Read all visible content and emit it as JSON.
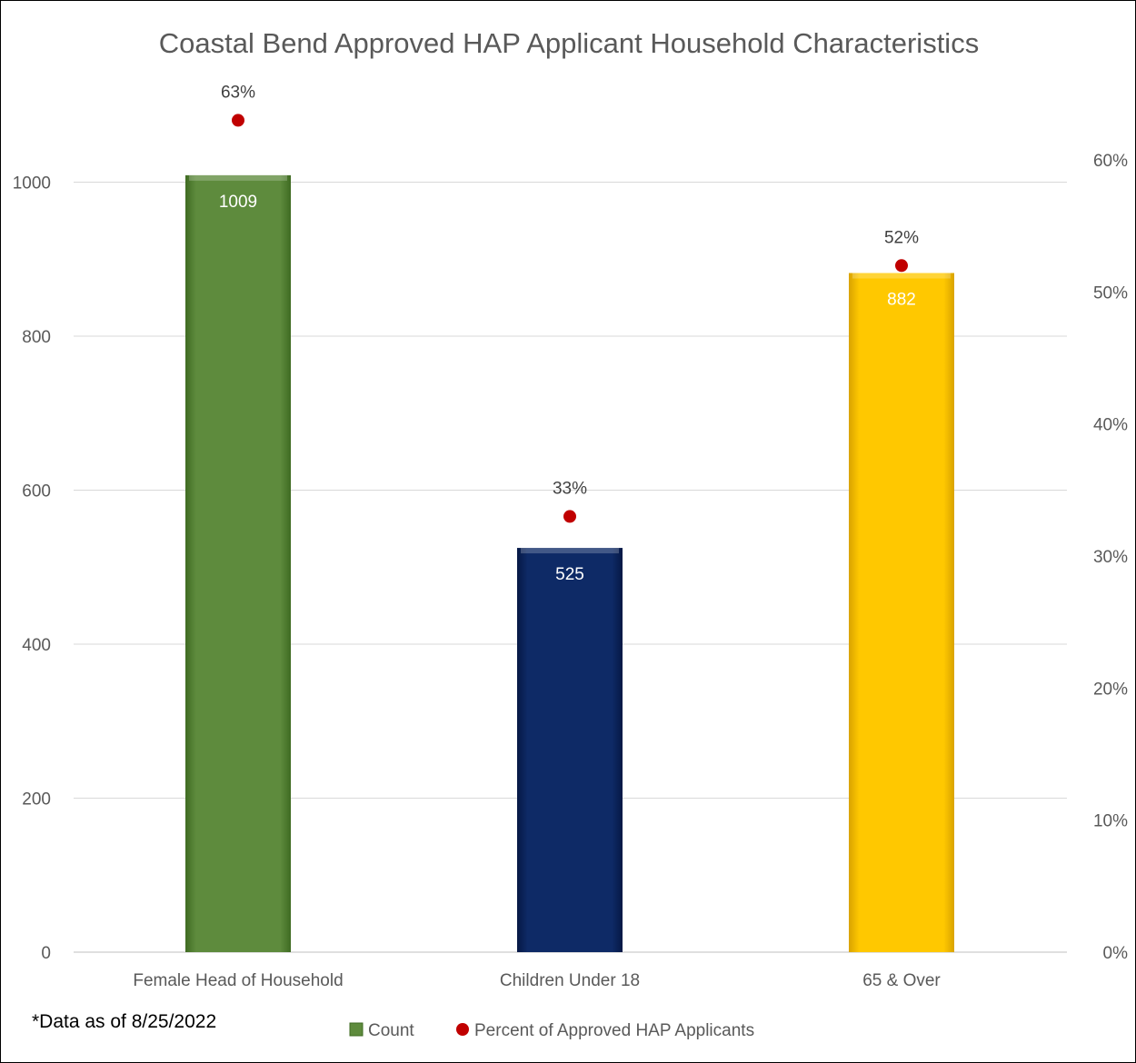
{
  "chart_data": {
    "type": "bar",
    "title": "Coastal Bend Approved HAP Applicant Household Characteristics",
    "categories": [
      "Female Head of Household",
      "Children Under 18",
      "65 & Over"
    ],
    "series": [
      {
        "name": "Count",
        "kind": "bar",
        "axis": "left",
        "values": [
          1009,
          525,
          882
        ],
        "value_labels": [
          "1009",
          "525",
          "882"
        ],
        "colors": [
          "#5e8b3d",
          "#0e2a66",
          "#ffc800"
        ]
      },
      {
        "name": "Percent of Approved HAP Applicants",
        "kind": "scatter",
        "axis": "right",
        "values": [
          0.63,
          0.33,
          0.52
        ],
        "value_labels": [
          "63%",
          "33%",
          "52%"
        ],
        "color": "#c00000"
      }
    ],
    "y_left": {
      "ylim": [
        0,
        1100
      ],
      "ticks": [
        0,
        200,
        400,
        600,
        800,
        1000
      ],
      "tick_labels": [
        "0",
        "200",
        "400",
        "600",
        "800",
        "1000"
      ]
    },
    "y_right": {
      "ylim": [
        0,
        0.66
      ],
      "ticks": [
        0,
        0.1,
        0.2,
        0.3,
        0.4,
        0.5,
        0.6
      ],
      "tick_labels": [
        "0%",
        "10%",
        "20%",
        "30%",
        "40%",
        "50%",
        "60%"
      ]
    },
    "grid": true,
    "legend_position": "bottom",
    "note": "*Data as of 8/25/2022"
  }
}
